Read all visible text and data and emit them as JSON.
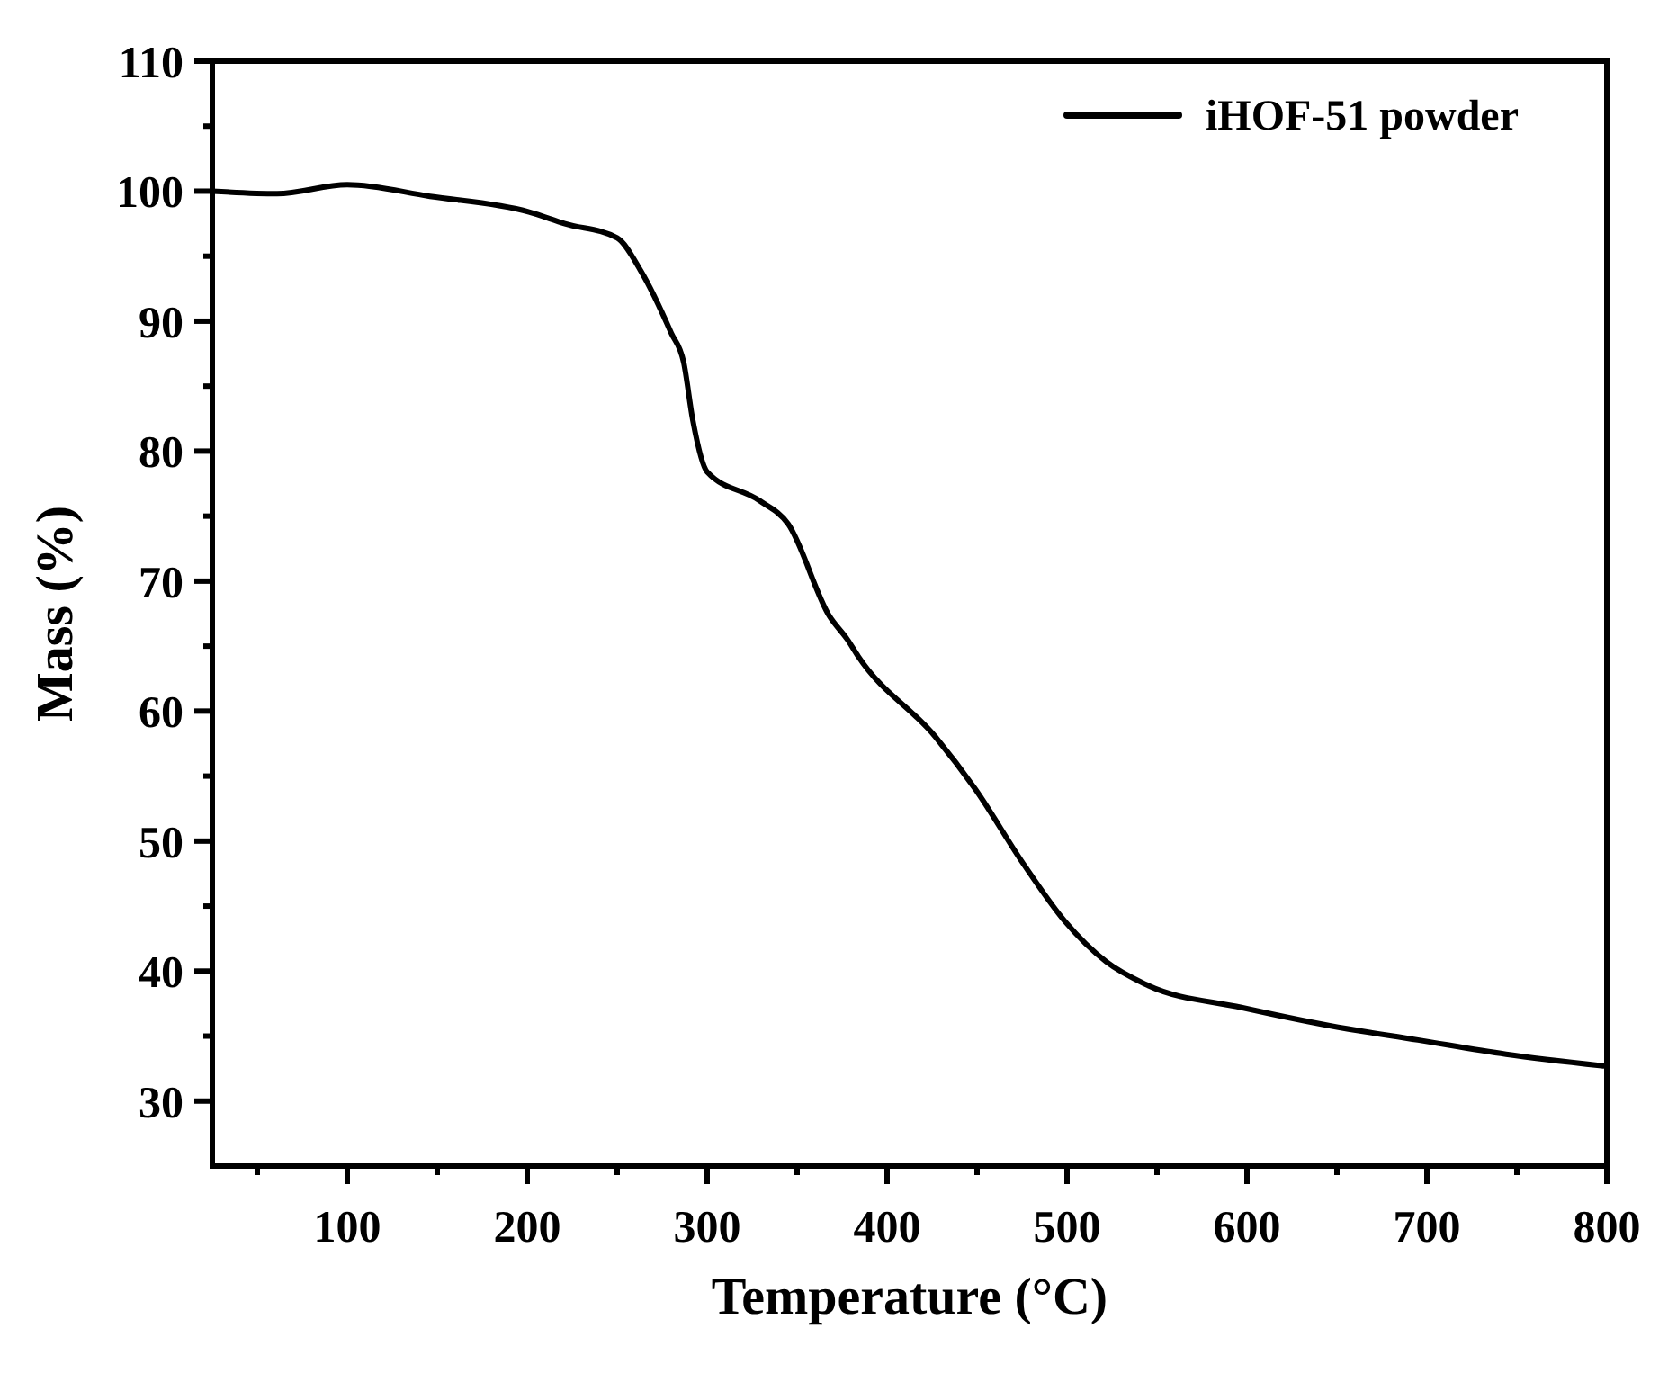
{
  "chart_data": {
    "type": "line",
    "xlabel": "Temperature (°C)",
    "ylabel": "Mass (%)",
    "xlim": [
      25,
      800
    ],
    "ylim": [
      25,
      110
    ],
    "xticks": [
      {
        "value": 50,
        "label": null
      },
      100,
      {
        "value": 150,
        "label": null
      },
      200,
      {
        "value": 250,
        "label": null
      },
      300,
      {
        "value": 350,
        "label": null
      },
      400,
      {
        "value": 450,
        "label": null
      },
      500,
      {
        "value": 550,
        "label": null
      },
      600,
      {
        "value": 650,
        "label": null
      },
      700,
      {
        "value": 750,
        "label": null
      },
      800
    ],
    "yticks": [
      30,
      {
        "value": 35,
        "label": null
      },
      40,
      {
        "value": 45,
        "label": null
      },
      50,
      {
        "value": 55,
        "label": null
      },
      60,
      {
        "value": 65,
        "label": null
      },
      70,
      {
        "value": 75,
        "label": null
      },
      80,
      {
        "value": 85,
        "label": null
      },
      90,
      {
        "value": 95,
        "label": null
      },
      100,
      {
        "value": 105,
        "label": null
      },
      110
    ],
    "legend": "top right",
    "grid": false,
    "marker": "none",
    "line_style": "solid",
    "series": [
      {
        "name": "iHOF-51 powder",
        "color": "#000000",
        "x": [
          25,
          61,
          100,
          146,
          201,
          221,
          250,
          263,
          280,
          287,
          292,
          300,
          329,
          345,
          368,
          378,
          384,
          427,
          449,
          476,
          499,
          522,
          545,
          597,
          646,
          695,
          744,
          798
        ],
        "values": [
          100,
          99.8,
          100.5,
          99.6,
          98.4,
          97.5,
          96.4,
          93.9,
          89.1,
          86.8,
          82.4,
          78.4,
          76.2,
          74.4,
          67.3,
          65.5,
          64.2,
          58.0,
          54.0,
          48.2,
          43.8,
          40.7,
          38.9,
          37.2,
          35.8,
          34.7,
          33.6,
          32.7
        ]
      }
    ]
  }
}
